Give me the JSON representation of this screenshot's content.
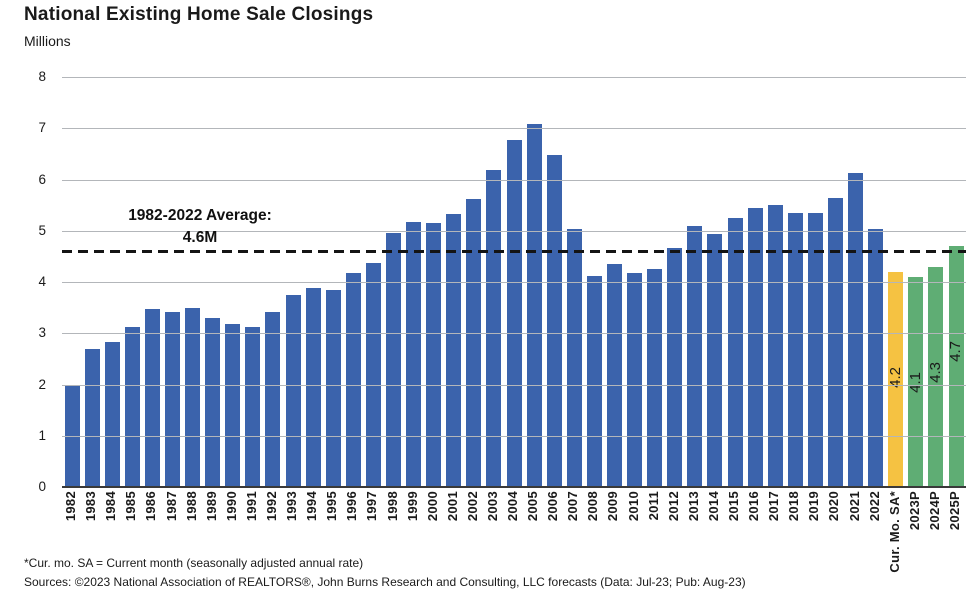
{
  "title": "National Existing Home Sale Closings",
  "units_label": "Millions",
  "annotation": {
    "line1": "1982-2022 Average:",
    "line2": "4.6M"
  },
  "footnote1": "*Cur. mo. SA = Current month (seasonally adjusted annual rate)",
  "footnote2": "Sources: ©2023 National Association of REALTORS®, John Burns Research and Consulting, LLC forecasts (Data: Jul-23; Pub: Aug-23)",
  "colors": {
    "bar_blue": "#3B63AC",
    "bar_yellow": "#F5C242",
    "bar_green": "#5FAD74",
    "gridline": "#B3B6BA",
    "axis_line": "#3A3A3A",
    "dashed_line": "#141414",
    "text": "#1A1A1A"
  },
  "chart_data": {
    "type": "bar",
    "title": "National Existing Home Sale Closings",
    "xlabel": "",
    "ylabel": "Millions",
    "ylim": [
      0,
      8
    ],
    "yticks": [
      0,
      1,
      2,
      3,
      4,
      5,
      6,
      7,
      8
    ],
    "grid": "horizontal gridlines drawn over bars",
    "legend_position": "none",
    "average_line": {
      "value": 4.6,
      "style": "black dashed horizontal line",
      "label": "1982-2022 Average: 4.6M"
    },
    "categories": [
      "1982",
      "1983",
      "1984",
      "1985",
      "1986",
      "1987",
      "1988",
      "1989",
      "1990",
      "1991",
      "1992",
      "1993",
      "1994",
      "1995",
      "1996",
      "1997",
      "1998",
      "1999",
      "2000",
      "2001",
      "2002",
      "2003",
      "2004",
      "2005",
      "2006",
      "2007",
      "2008",
      "2009",
      "2010",
      "2011",
      "2012",
      "2013",
      "2014",
      "2015",
      "2016",
      "2017",
      "2018",
      "2019",
      "2020",
      "2021",
      "2022",
      "Cur. Mo. SA*",
      "2023P",
      "2024P",
      "2025P"
    ],
    "values": [
      1.99,
      2.7,
      2.83,
      3.13,
      3.48,
      3.42,
      3.5,
      3.3,
      3.18,
      3.12,
      3.41,
      3.75,
      3.89,
      3.85,
      4.17,
      4.37,
      4.96,
      5.17,
      5.15,
      5.33,
      5.63,
      6.18,
      6.78,
      7.08,
      6.48,
      5.03,
      4.11,
      4.35,
      4.18,
      4.26,
      4.66,
      5.09,
      4.94,
      5.25,
      5.45,
      5.51,
      5.34,
      5.34,
      5.64,
      6.12,
      5.03,
      4.2,
      4.1,
      4.3,
      4.7
    ],
    "bar_colors": [
      "blue",
      "blue",
      "blue",
      "blue",
      "blue",
      "blue",
      "blue",
      "blue",
      "blue",
      "blue",
      "blue",
      "blue",
      "blue",
      "blue",
      "blue",
      "blue",
      "blue",
      "blue",
      "blue",
      "blue",
      "blue",
      "blue",
      "blue",
      "blue",
      "blue",
      "blue",
      "blue",
      "blue",
      "blue",
      "blue",
      "blue",
      "blue",
      "blue",
      "blue",
      "blue",
      "blue",
      "blue",
      "blue",
      "blue",
      "blue",
      "blue",
      "yellow",
      "green",
      "green",
      "green"
    ],
    "bar_labels": [
      "",
      "",
      "",
      "",
      "",
      "",
      "",
      "",
      "",
      "",
      "",
      "",
      "",
      "",
      "",
      "",
      "",
      "",
      "",
      "",
      "",
      "",
      "",
      "",
      "",
      "",
      "",
      "",
      "",
      "",
      "",
      "",
      "",
      "",
      "",
      "",
      "",
      "",
      "",
      "",
      "",
      "4.2",
      "4.1",
      "4.3",
      "4.7"
    ]
  }
}
